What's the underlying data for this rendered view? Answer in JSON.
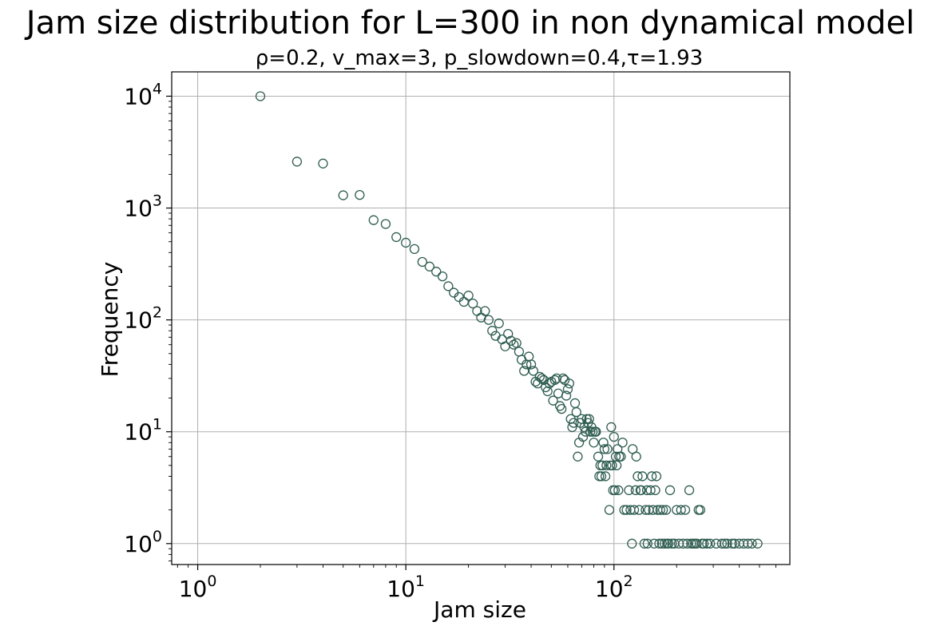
{
  "chart_data": {
    "type": "scatter",
    "title": "Jam size distribution for L=300 in non dynamical model",
    "subtitle": "ρ=0.2, v_max=3, p_slowdown=0.4,τ=1.93",
    "xlabel": "Jam size",
    "ylabel": "Frequency",
    "xscale": "log",
    "yscale": "log",
    "xlim": [
      0.75,
      700
    ],
    "ylim": [
      0.65,
      16500
    ],
    "grid": true,
    "x_ticks": [
      {
        "base": "10",
        "exp": "0",
        "value": 1
      },
      {
        "base": "10",
        "exp": "1",
        "value": 10
      },
      {
        "base": "10",
        "exp": "2",
        "value": 100
      }
    ],
    "y_ticks": [
      {
        "base": "10",
        "exp": "0",
        "value": 1
      },
      {
        "base": "10",
        "exp": "1",
        "value": 10
      },
      {
        "base": "10",
        "exp": "2",
        "value": 100
      },
      {
        "base": "10",
        "exp": "3",
        "value": 1000
      },
      {
        "base": "10",
        "exp": "4",
        "value": 10000
      }
    ],
    "marker_color": "#2f5d50",
    "points": [
      [
        2,
        10000
      ],
      [
        3,
        2600
      ],
      [
        4,
        2500
      ],
      [
        5,
        1300
      ],
      [
        6,
        1310
      ],
      [
        7,
        780
      ],
      [
        8,
        720
      ],
      [
        9,
        550
      ],
      [
        10,
        490
      ],
      [
        11,
        430
      ],
      [
        12,
        330
      ],
      [
        13,
        300
      ],
      [
        14,
        270
      ],
      [
        15,
        245
      ],
      [
        16,
        200
      ],
      [
        17,
        175
      ],
      [
        18,
        160
      ],
      [
        19,
        145
      ],
      [
        20,
        165
      ],
      [
        21,
        140
      ],
      [
        22,
        120
      ],
      [
        23,
        105
      ],
      [
        24,
        120
      ],
      [
        25,
        100
      ],
      [
        26,
        80
      ],
      [
        27,
        72
      ],
      [
        28,
        93
      ],
      [
        29,
        67
      ],
      [
        30,
        58
      ],
      [
        31,
        75
      ],
      [
        32,
        65
      ],
      [
        33,
        60
      ],
      [
        34,
        62
      ],
      [
        35,
        52
      ],
      [
        36,
        44
      ],
      [
        37,
        35
      ],
      [
        38,
        40
      ],
      [
        39,
        47
      ],
      [
        40,
        40
      ],
      [
        41,
        35
      ],
      [
        42,
        28
      ],
      [
        43,
        27
      ],
      [
        44,
        31
      ],
      [
        45,
        30
      ],
      [
        46,
        29
      ],
      [
        47,
        25
      ],
      [
        48,
        23
      ],
      [
        49,
        27
      ],
      [
        50,
        28
      ],
      [
        51,
        19
      ],
      [
        52,
        29
      ],
      [
        53,
        30
      ],
      [
        54,
        22
      ],
      [
        55,
        17
      ],
      [
        56,
        16
      ],
      [
        57,
        30
      ],
      [
        58,
        29
      ],
      [
        59,
        21
      ],
      [
        60,
        24
      ],
      [
        61,
        27
      ],
      [
        62,
        13
      ],
      [
        63,
        11
      ],
      [
        64,
        12
      ],
      [
        65,
        18
      ],
      [
        66,
        15
      ],
      [
        67,
        6
      ],
      [
        68,
        8
      ],
      [
        69,
        12
      ],
      [
        70,
        13
      ],
      [
        71,
        9
      ],
      [
        72,
        11
      ],
      [
        73,
        10
      ],
      [
        74,
        13
      ],
      [
        75,
        12
      ],
      [
        76,
        13
      ],
      [
        77,
        10
      ],
      [
        78,
        11
      ],
      [
        79,
        10
      ],
      [
        80,
        8
      ],
      [
        81,
        10
      ],
      [
        82,
        10
      ],
      [
        84,
        6
      ],
      [
        85,
        4
      ],
      [
        86,
        5
      ],
      [
        87,
        4
      ],
      [
        88,
        5
      ],
      [
        89,
        8
      ],
      [
        90,
        7
      ],
      [
        91,
        4
      ],
      [
        92,
        5
      ],
      [
        93,
        7
      ],
      [
        95,
        2
      ],
      [
        96,
        5
      ],
      [
        97,
        11
      ],
      [
        98,
        5
      ],
      [
        99,
        3
      ],
      [
        100,
        9
      ],
      [
        101,
        3
      ],
      [
        102,
        6
      ],
      [
        103,
        5
      ],
      [
        104,
        7
      ],
      [
        105,
        3
      ],
      [
        106,
        6
      ],
      [
        108,
        6
      ],
      [
        110,
        8
      ],
      [
        112,
        2
      ],
      [
        115,
        2
      ],
      [
        118,
        3
      ],
      [
        120,
        2
      ],
      [
        122,
        1
      ],
      [
        123,
        7
      ],
      [
        125,
        2
      ],
      [
        127,
        3
      ],
      [
        128,
        6
      ],
      [
        130,
        4
      ],
      [
        132,
        2
      ],
      [
        134,
        3
      ],
      [
        135,
        3
      ],
      [
        137,
        4
      ],
      [
        140,
        1
      ],
      [
        142,
        2
      ],
      [
        144,
        3
      ],
      [
        145,
        1
      ],
      [
        147,
        2
      ],
      [
        150,
        3
      ],
      [
        152,
        4
      ],
      [
        154,
        2
      ],
      [
        156,
        1
      ],
      [
        158,
        3
      ],
      [
        160,
        4
      ],
      [
        162,
        2
      ],
      [
        165,
        1
      ],
      [
        167,
        2
      ],
      [
        170,
        1
      ],
      [
        172,
        2
      ],
      [
        175,
        1
      ],
      [
        178,
        2
      ],
      [
        180,
        1
      ],
      [
        183,
        1
      ],
      [
        186,
        3
      ],
      [
        190,
        1
      ],
      [
        195,
        1
      ],
      [
        200,
        2
      ],
      [
        205,
        1
      ],
      [
        210,
        2
      ],
      [
        215,
        1
      ],
      [
        220,
        2
      ],
      [
        225,
        1
      ],
      [
        230,
        3
      ],
      [
        235,
        1
      ],
      [
        240,
        1
      ],
      [
        245,
        1
      ],
      [
        250,
        1
      ],
      [
        255,
        2
      ],
      [
        260,
        2
      ],
      [
        265,
        1
      ],
      [
        270,
        1
      ],
      [
        280,
        1
      ],
      [
        290,
        1
      ],
      [
        310,
        1
      ],
      [
        330,
        1
      ],
      [
        340,
        1
      ],
      [
        350,
        1
      ],
      [
        370,
        1
      ],
      [
        380,
        1
      ],
      [
        400,
        1
      ],
      [
        420,
        1
      ],
      [
        440,
        1
      ],
      [
        460,
        1
      ],
      [
        490,
        1
      ]
    ]
  }
}
